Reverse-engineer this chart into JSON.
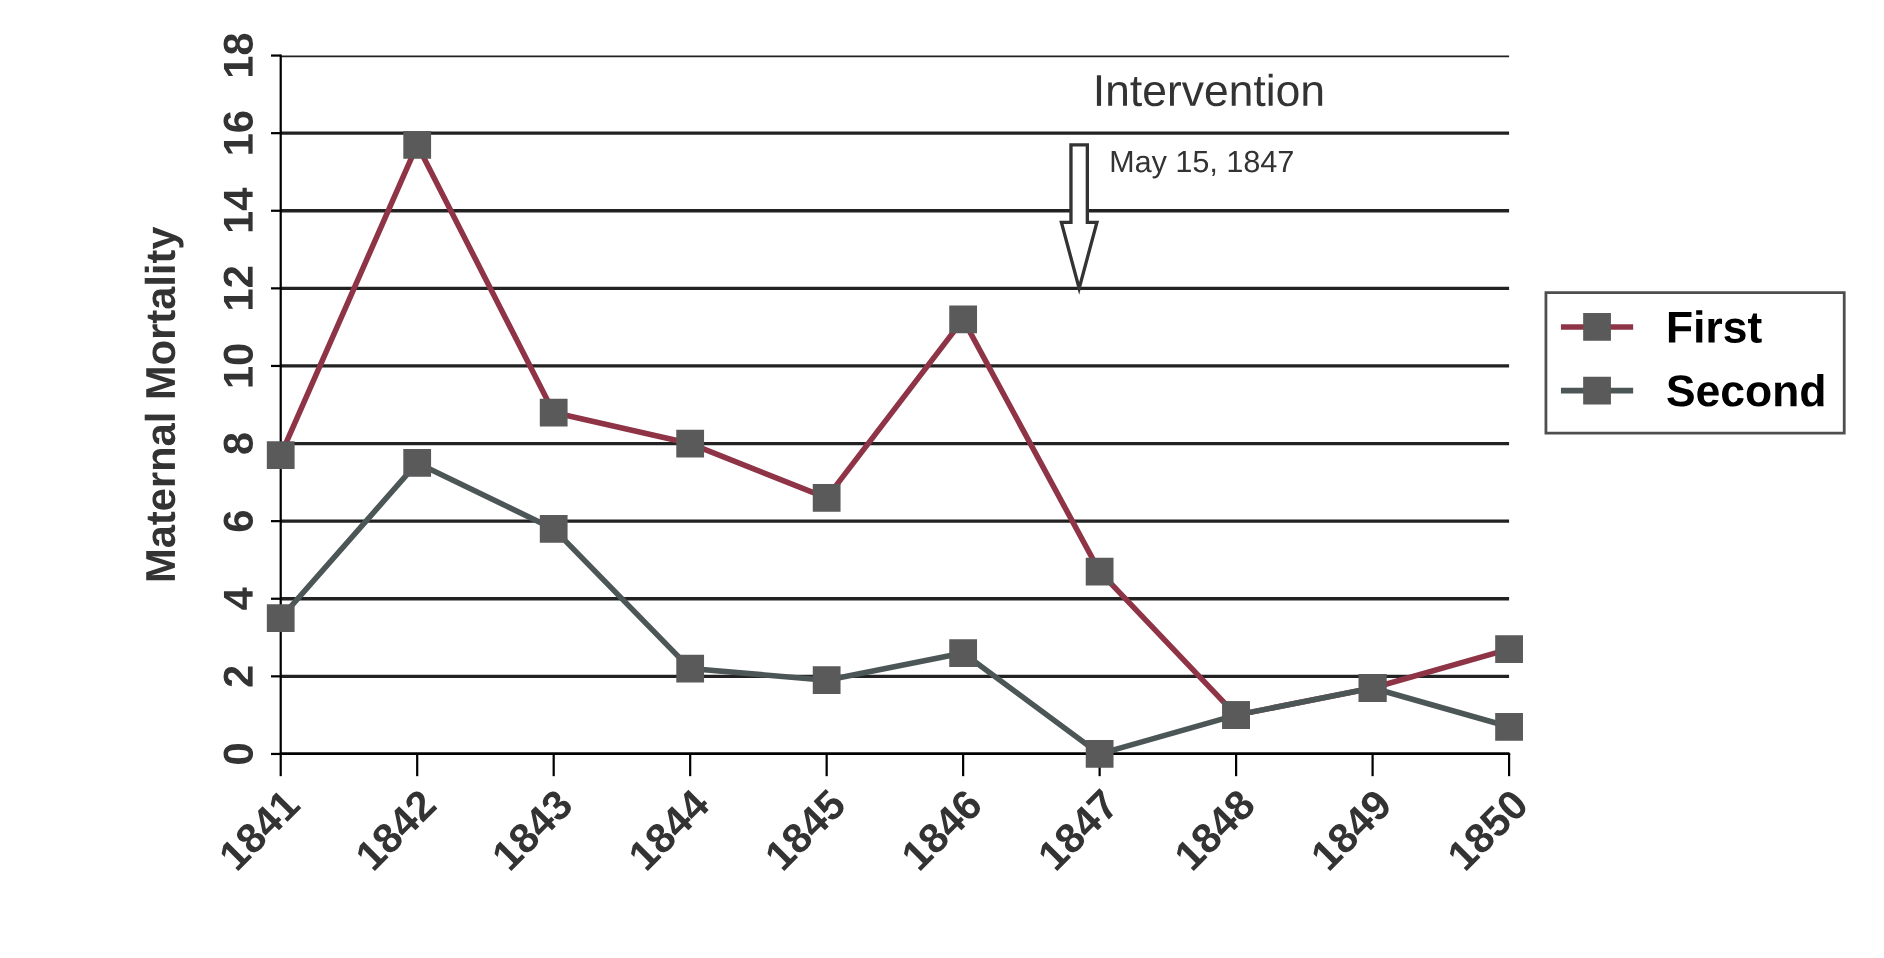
{
  "chart_data": {
    "type": "line",
    "categories": [
      "1841",
      "1842",
      "1843",
      "1844",
      "1845",
      "1846",
      "1847",
      "1848",
      "1849",
      "1850"
    ],
    "series": [
      {
        "name": "First",
        "color": "#8e3446",
        "values": [
          7.7,
          15.7,
          8.8,
          8.0,
          6.6,
          11.2,
          4.7,
          1.0,
          1.7,
          2.7
        ]
      },
      {
        "name": "Second",
        "color": "#4d5656",
        "values": [
          3.5,
          7.5,
          5.8,
          2.2,
          1.9,
          2.6,
          0,
          1.0,
          1.7,
          0.7
        ]
      }
    ],
    "ylabel": "Maternal Mortality",
    "ylim": [
      0,
      18
    ],
    "yticks": [
      0,
      2,
      4,
      6,
      8,
      10,
      12,
      14,
      16,
      18
    ],
    "annotations": [
      "Intervention",
      "May 15, 1847"
    ],
    "grid": "y",
    "legend": "right",
    "marker": "square",
    "line_style": "solid"
  }
}
